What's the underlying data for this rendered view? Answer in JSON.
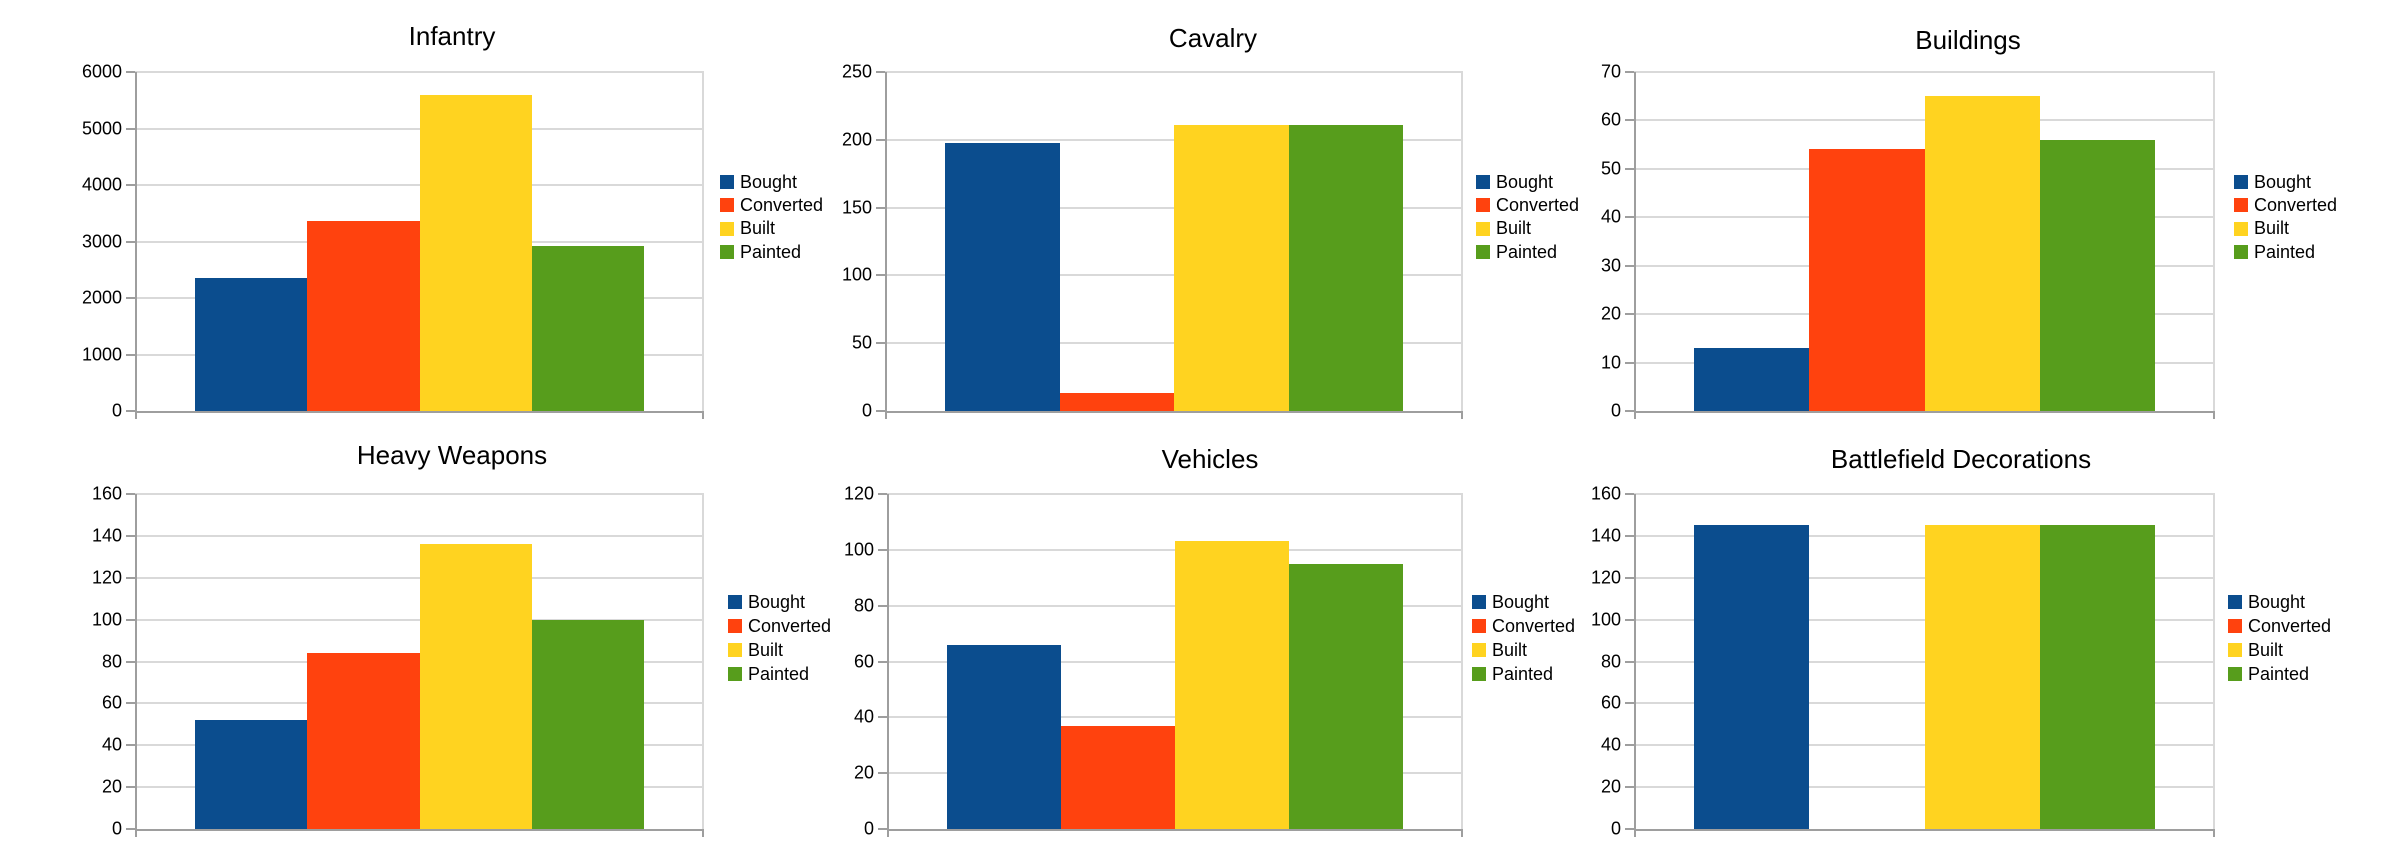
{
  "page": {
    "background": "#ffffff",
    "text_color": "#000000"
  },
  "axis_style": {
    "grid_color": "#d9d9d9",
    "axis_color": "#9e9e9e",
    "label_color": "#000000"
  },
  "legend": {
    "position": "right",
    "items": [
      {
        "label": "Bought",
        "color": "#0b4d8e"
      },
      {
        "label": "Converted",
        "color": "#ff420e"
      },
      {
        "label": "Built",
        "color": "#ffd320"
      },
      {
        "label": "Painted",
        "color": "#579d1c"
      }
    ]
  },
  "chart_data": [
    {
      "type": "bar",
      "title": "Infantry",
      "categories": [
        "Bought",
        "Converted",
        "Built",
        "Painted"
      ],
      "values": [
        2350,
        3370,
        5590,
        2920
      ],
      "series_colors": [
        "#0b4d8e",
        "#ff420e",
        "#ffd320",
        "#579d1c"
      ],
      "xlabel": "",
      "ylabel": "",
      "ylim": [
        0,
        6000
      ],
      "ystep": 1000,
      "grid": true,
      "legend_position": "right"
    },
    {
      "type": "bar",
      "title": "Cavalry",
      "categories": [
        "Bought",
        "Converted",
        "Built",
        "Painted"
      ],
      "values": [
        198,
        13,
        211,
        211
      ],
      "series_colors": [
        "#0b4d8e",
        "#ff420e",
        "#ffd320",
        "#579d1c"
      ],
      "xlabel": "",
      "ylabel": "",
      "ylim": [
        0,
        250
      ],
      "ystep": 50,
      "grid": true,
      "legend_position": "right"
    },
    {
      "type": "bar",
      "title": "Buildings",
      "categories": [
        "Bought",
        "Converted",
        "Built",
        "Painted"
      ],
      "values": [
        13,
        54,
        65,
        56
      ],
      "series_colors": [
        "#0b4d8e",
        "#ff420e",
        "#ffd320",
        "#579d1c"
      ],
      "xlabel": "",
      "ylabel": "",
      "ylim": [
        0,
        70
      ],
      "ystep": 10,
      "grid": true,
      "legend_position": "right"
    },
    {
      "type": "bar",
      "title": "Heavy Weapons",
      "categories": [
        "Bought",
        "Converted",
        "Built",
        "Painted"
      ],
      "values": [
        52,
        84,
        136,
        100
      ],
      "series_colors": [
        "#0b4d8e",
        "#ff420e",
        "#ffd320",
        "#579d1c"
      ],
      "xlabel": "",
      "ylabel": "",
      "ylim": [
        0,
        160
      ],
      "ystep": 20,
      "grid": true,
      "legend_position": "right"
    },
    {
      "type": "bar",
      "title": "Vehicles",
      "categories": [
        "Bought",
        "Converted",
        "Built",
        "Painted"
      ],
      "values": [
        66,
        37,
        103,
        95
      ],
      "series_colors": [
        "#0b4d8e",
        "#ff420e",
        "#ffd320",
        "#579d1c"
      ],
      "xlabel": "",
      "ylabel": "",
      "ylim": [
        0,
        120
      ],
      "ystep": 20,
      "grid": true,
      "legend_position": "right"
    },
    {
      "type": "bar",
      "title": "Battlefield Decorations",
      "categories": [
        "Bought",
        "Converted",
        "Built",
        "Painted"
      ],
      "values": [
        145,
        0,
        145,
        145
      ],
      "series_colors": [
        "#0b4d8e",
        "#ff420e",
        "#ffd320",
        "#579d1c"
      ],
      "xlabel": "",
      "ylabel": "",
      "ylim": [
        0,
        160
      ],
      "ystep": 20,
      "grid": true,
      "legend_position": "right"
    }
  ]
}
